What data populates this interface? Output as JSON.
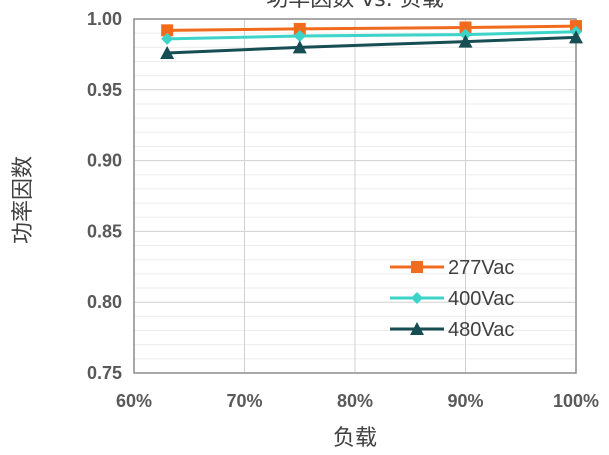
{
  "chart_data": {
    "type": "line",
    "title": "功率因数 vs. 负载",
    "xlabel": "负载",
    "ylabel": "功率因数",
    "xlim": [
      60,
      100
    ],
    "ylim": [
      0.75,
      1.0
    ],
    "x_ticks": [
      "60%",
      "70%",
      "80%",
      "90%",
      "100%"
    ],
    "y_ticks": [
      "0.75",
      "0.80",
      "0.85",
      "0.90",
      "0.95",
      "1.00"
    ],
    "x": [
      63,
      75,
      90,
      100
    ],
    "series": [
      {
        "name": "277Vac",
        "color": "#f26b1d",
        "marker": "square",
        "values": [
          0.992,
          0.993,
          0.994,
          0.995
        ]
      },
      {
        "name": "400Vac",
        "color": "#3cd4c8",
        "marker": "diamond",
        "values": [
          0.986,
          0.988,
          0.989,
          0.991
        ]
      },
      {
        "name": "480Vac",
        "color": "#174e53",
        "marker": "triangle",
        "values": [
          0.976,
          0.98,
          0.984,
          0.987
        ]
      }
    ],
    "grid": true,
    "legend_position": "bottom-right"
  }
}
